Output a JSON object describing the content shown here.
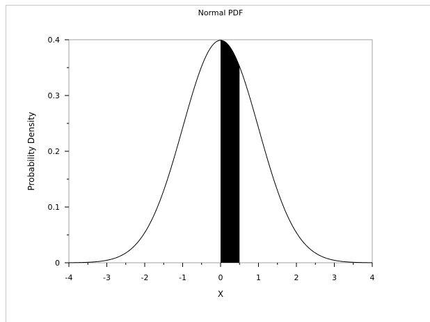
{
  "chart_data": {
    "type": "line",
    "title": "Normal PDF",
    "xlabel": "X",
    "ylabel": "Probability Density",
    "xlim": [
      -4,
      4
    ],
    "ylim": [
      0,
      0.4
    ],
    "x_ticks": [
      -4,
      -3,
      -2,
      -1,
      0,
      1,
      2,
      3,
      4
    ],
    "x_tick_labels": [
      "-4",
      "-3",
      "-2",
      "-1",
      "0",
      "1",
      "2",
      "3",
      "4"
    ],
    "y_ticks": [
      0,
      0.1,
      0.2,
      0.3,
      0.4
    ],
    "y_tick_labels": [
      "0",
      "0.1",
      "0.2",
      "0.3",
      "0.4"
    ],
    "grid": false,
    "series": [
      {
        "distribution": "standard normal",
        "mean": 0,
        "sd": 1
      }
    ],
    "shaded_region": {
      "from": 0,
      "to": 0.5,
      "color": "#000000"
    }
  }
}
